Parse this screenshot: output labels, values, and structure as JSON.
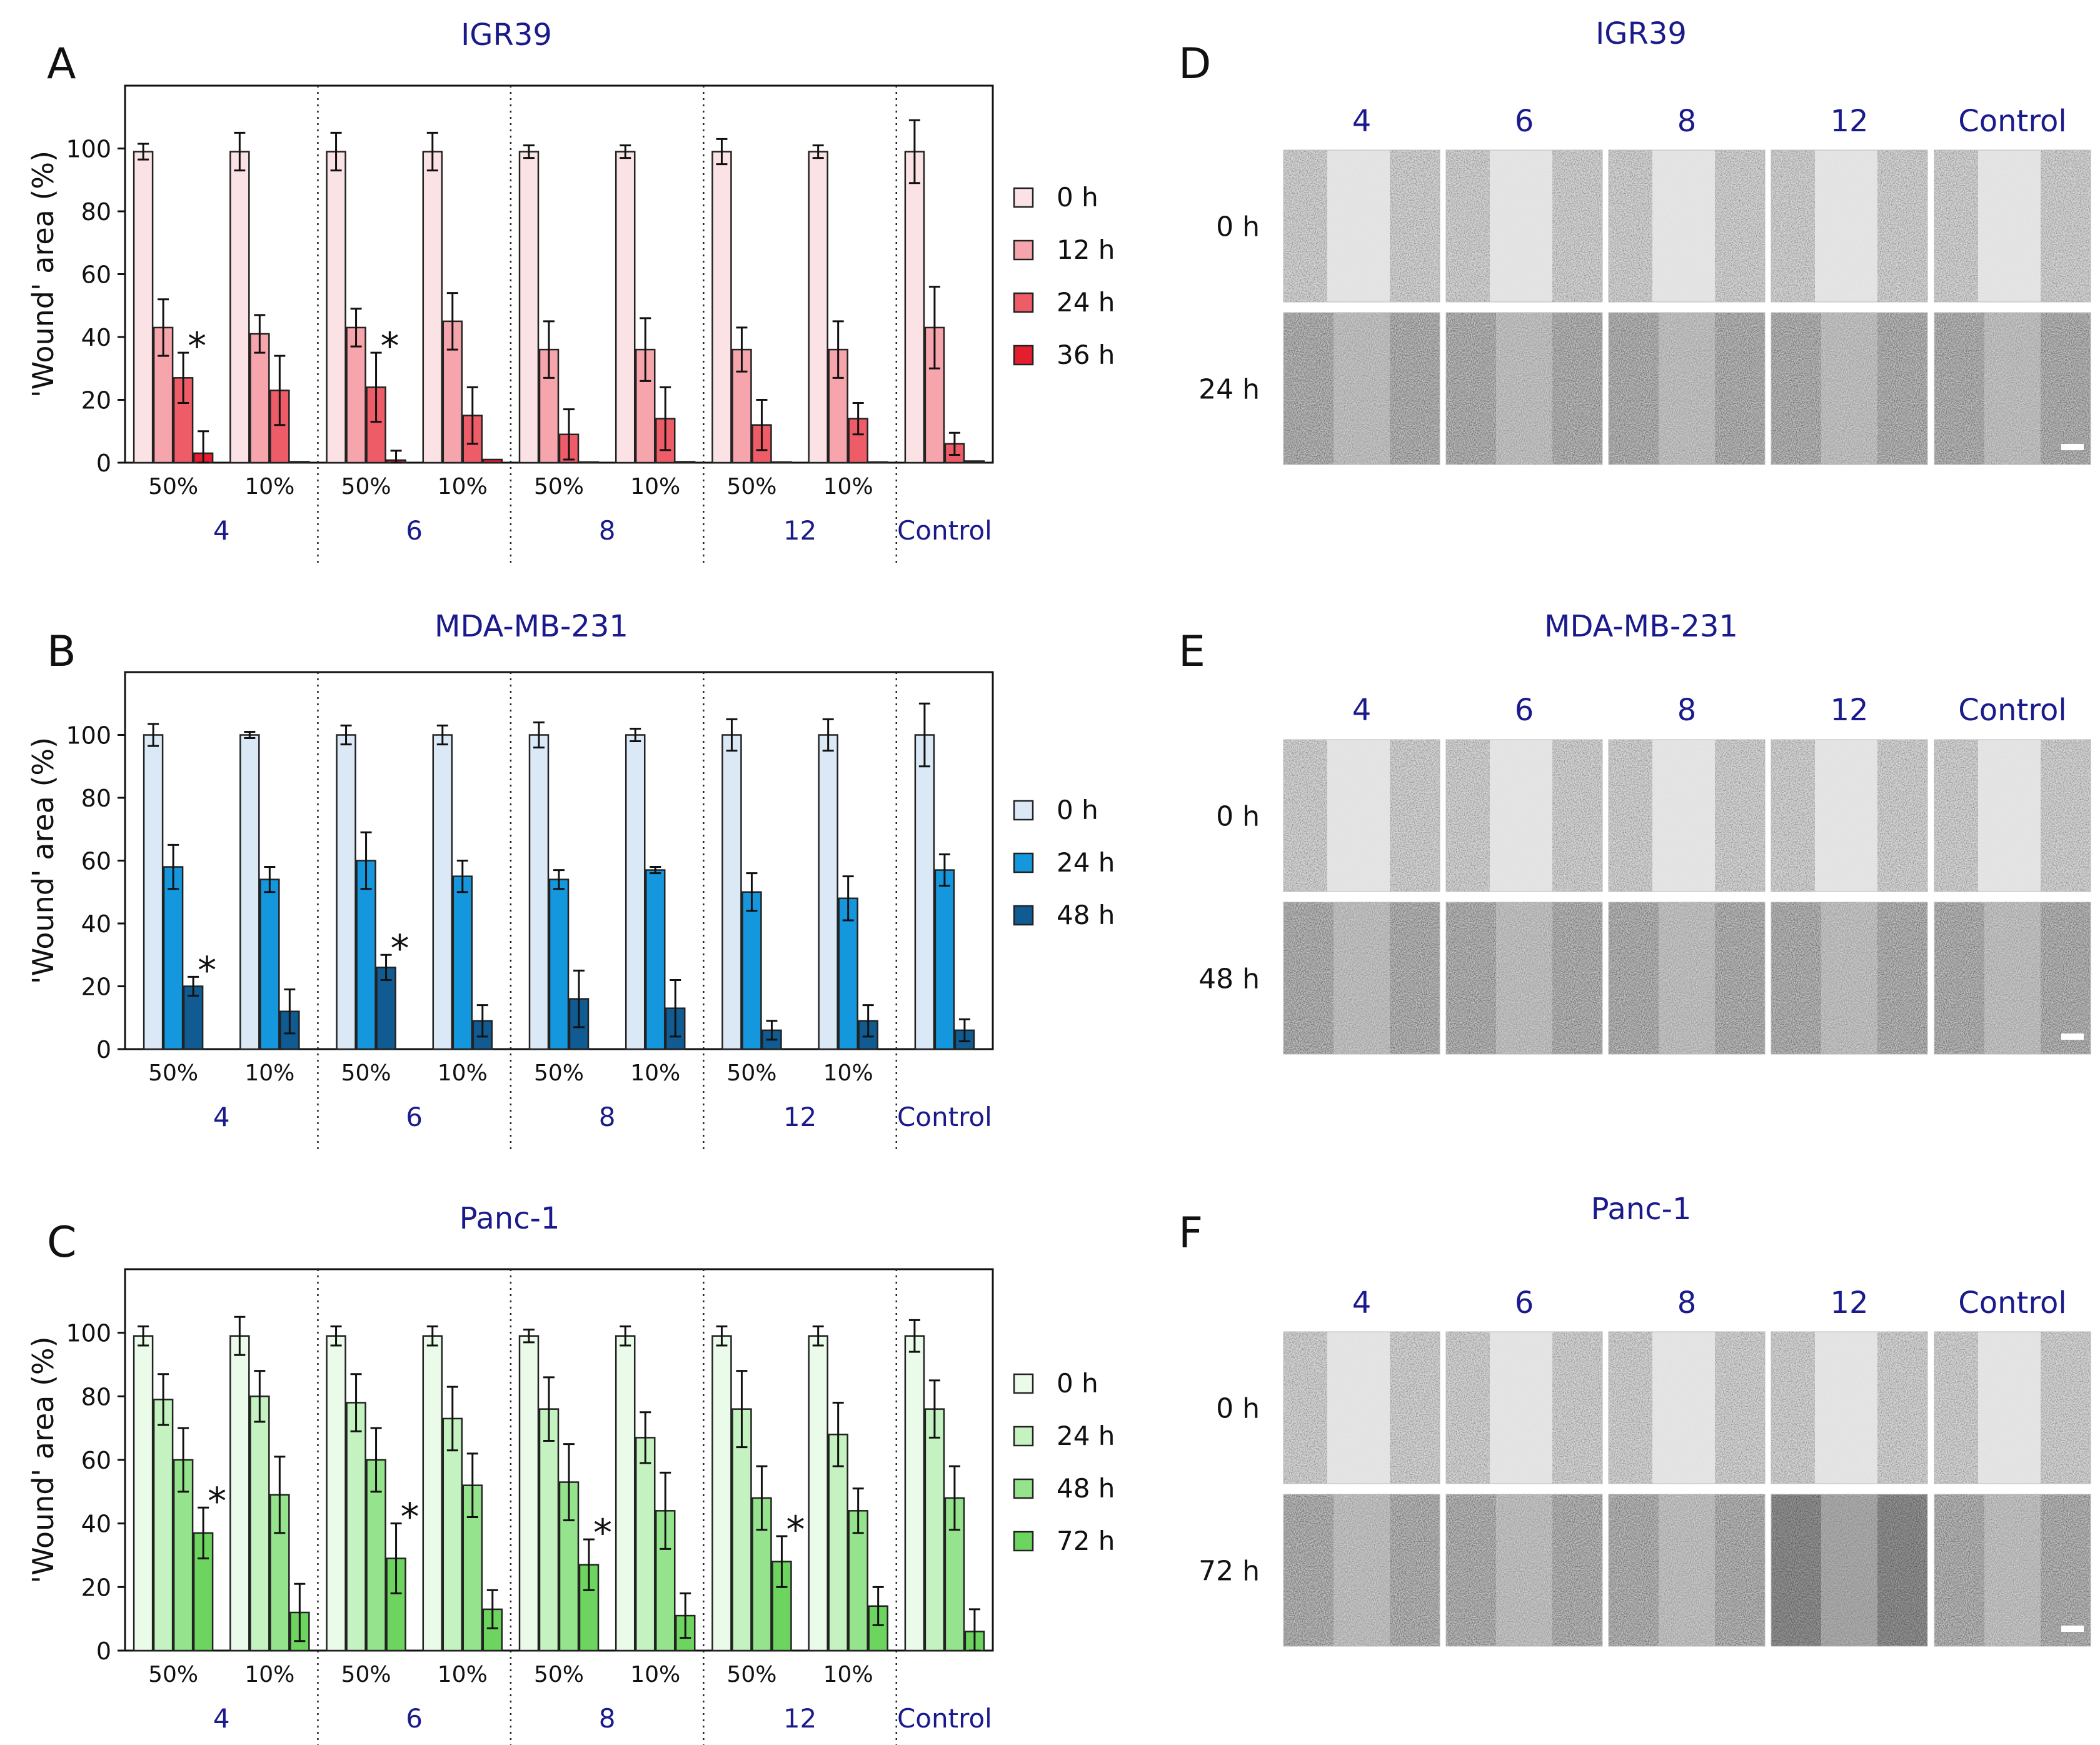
{
  "colors": {
    "title": "#1a1a8c",
    "igr": [
      "#fbe3e5",
      "#f5a5ab",
      "#ee5c68",
      "#e41e2e"
    ],
    "mda": [
      "#dbe9f7",
      "#1597dd",
      "#0f5b92"
    ],
    "panc": [
      "#eafbe9",
      "#c4f2c0",
      "#96e38e",
      "#6dd45f"
    ]
  },
  "chart_data": [
    {
      "type": "bar",
      "panel": "A",
      "title": "IGR39",
      "ylabel": "'Wound' area (%)",
      "ylim": [
        0,
        120
      ],
      "yticks": [
        0,
        20,
        40,
        60,
        80,
        100
      ],
      "groups": [
        "4",
        "6",
        "8",
        "12",
        "Control"
      ],
      "subcategories": [
        "50%",
        "10%",
        "50%",
        "10%",
        "50%",
        "10%",
        "50%",
        "10%",
        ""
      ],
      "legend": [
        "0 h",
        "12 h",
        "24 h",
        "36 h"
      ],
      "series": [
        {
          "name": "0 h",
          "values": [
            99,
            99,
            99,
            99,
            99,
            99,
            99,
            99,
            99
          ],
          "errors": [
            2.5,
            6,
            6,
            6,
            2,
            2,
            4,
            2,
            10
          ]
        },
        {
          "name": "12 h",
          "values": [
            43,
            41,
            43,
            45,
            36,
            36,
            36,
            36,
            43
          ],
          "errors": [
            9,
            6,
            6,
            9,
            9,
            10,
            7,
            9,
            13
          ]
        },
        {
          "name": "24 h",
          "values": [
            27,
            23,
            24,
            15,
            9,
            14,
            12,
            14,
            6
          ],
          "errors": [
            8,
            11,
            11,
            9,
            8,
            10,
            8,
            5,
            3.5
          ]
        },
        {
          "name": "36 h",
          "values": [
            3,
            0.3,
            0.8,
            1,
            0.2,
            0.3,
            0.2,
            0.2,
            0.5
          ],
          "errors": [
            7,
            0,
            3,
            0,
            0,
            0,
            0,
            0,
            0
          ]
        }
      ],
      "annotations": [
        {
          "text": "*",
          "bar": "24 h",
          "index": 0
        },
        {
          "text": "*",
          "bar": "24 h",
          "index": 2
        }
      ]
    },
    {
      "type": "bar",
      "panel": "B",
      "title": "MDA-MB-231",
      "ylabel": "'Wound' area (%)",
      "ylim": [
        0,
        120
      ],
      "yticks": [
        0,
        20,
        40,
        60,
        80,
        100
      ],
      "groups": [
        "4",
        "6",
        "8",
        "12",
        "Control"
      ],
      "subcategories": [
        "50%",
        "10%",
        "50%",
        "10%",
        "50%",
        "10%",
        "50%",
        "10%",
        ""
      ],
      "legend": [
        "0 h",
        "24 h",
        "48 h"
      ],
      "series": [
        {
          "name": "0 h",
          "values": [
            100,
            100,
            100,
            100,
            100,
            100,
            100,
            100,
            100
          ],
          "errors": [
            3.5,
            1,
            3,
            3,
            4,
            2,
            5,
            5,
            10
          ]
        },
        {
          "name": "24 h",
          "values": [
            58,
            54,
            60,
            55,
            54,
            57,
            50,
            48,
            57
          ],
          "errors": [
            7,
            4,
            9,
            5,
            3,
            1,
            6,
            7,
            5
          ]
        },
        {
          "name": "48 h",
          "values": [
            20,
            12,
            26,
            9,
            16,
            13,
            6,
            9,
            6
          ],
          "errors": [
            3,
            7,
            4,
            5,
            9,
            9,
            3,
            5,
            3.5
          ]
        }
      ],
      "annotations": [
        {
          "text": "*",
          "bar": "48 h",
          "index": 0
        },
        {
          "text": "*",
          "bar": "48 h",
          "index": 2
        }
      ]
    },
    {
      "type": "bar",
      "panel": "C",
      "title": "Panc-1",
      "ylabel": "'Wound' area (%)",
      "ylim": [
        0,
        120
      ],
      "yticks": [
        0,
        20,
        40,
        60,
        80,
        100
      ],
      "groups": [
        "4",
        "6",
        "8",
        "12",
        "Control"
      ],
      "subcategories": [
        "50%",
        "10%",
        "50%",
        "10%",
        "50%",
        "10%",
        "50%",
        "10%",
        ""
      ],
      "legend": [
        "0 h",
        "24 h",
        "48 h",
        "72 h"
      ],
      "series": [
        {
          "name": "0 h",
          "values": [
            99,
            99,
            99,
            99,
            99,
            99,
            99,
            99,
            99
          ],
          "errors": [
            3,
            6,
            3,
            3,
            2,
            3,
            3,
            3,
            5
          ]
        },
        {
          "name": "24 h",
          "values": [
            79,
            80,
            78,
            73,
            76,
            67,
            76,
            68,
            76
          ],
          "errors": [
            8,
            8,
            9,
            10,
            10,
            8,
            12,
            10,
            9
          ]
        },
        {
          "name": "48 h",
          "values": [
            60,
            49,
            60,
            52,
            53,
            44,
            48,
            44,
            48
          ],
          "errors": [
            10,
            12,
            10,
            10,
            12,
            12,
            10,
            7,
            10
          ]
        },
        {
          "name": "72 h",
          "values": [
            37,
            12,
            29,
            13,
            27,
            11,
            28,
            14,
            6
          ],
          "errors": [
            8,
            9,
            11,
            6,
            8,
            7,
            8,
            6,
            7
          ]
        }
      ],
      "annotations": [
        {
          "text": "*",
          "bar": "72 h",
          "index": 0
        },
        {
          "text": "*",
          "bar": "72 h",
          "index": 2
        },
        {
          "text": "*",
          "bar": "72 h",
          "index": 4
        },
        {
          "text": "*",
          "bar": "72 h",
          "index": 6
        }
      ]
    }
  ],
  "panel_labels": {
    "a": "A",
    "b": "B",
    "c": "C",
    "d": "D",
    "e": "E",
    "f": "F"
  },
  "micrographs": [
    {
      "panel": "D",
      "title": "IGR39",
      "columns": [
        "4",
        "6",
        "8",
        "12",
        "Control"
      ],
      "rows": [
        "0 h",
        "24 h"
      ]
    },
    {
      "panel": "E",
      "title": "MDA-MB-231",
      "columns": [
        "4",
        "6",
        "8",
        "12",
        "Control"
      ],
      "rows": [
        "0 h",
        "48 h"
      ]
    },
    {
      "panel": "F",
      "title": "Panc-1",
      "columns": [
        "4",
        "6",
        "8",
        "12",
        "Control"
      ],
      "rows": [
        "0 h",
        "72 h"
      ]
    }
  ]
}
